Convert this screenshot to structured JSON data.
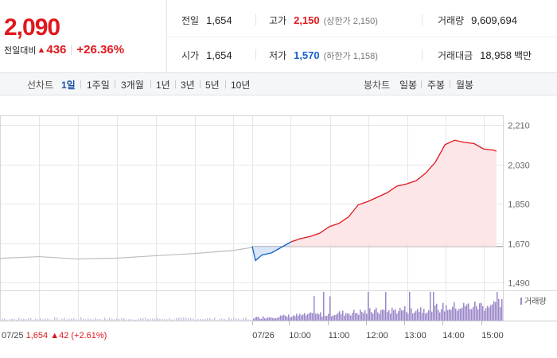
{
  "header": {
    "current_price": "2,090",
    "change_label": "전일대비",
    "change_arrow": "▲",
    "change_amount": "436",
    "change_rate": "+26.36%",
    "prev_close": {
      "label": "전일",
      "value": "1,654"
    },
    "high": {
      "label": "고가",
      "value": "2,150",
      "sub": "(상한가 2,150)"
    },
    "volume": {
      "label": "거래량",
      "value": "9,609,694"
    },
    "open": {
      "label": "시가",
      "value": "1,654"
    },
    "low": {
      "label": "저가",
      "value": "1,570",
      "sub": "(하한가 1,158)"
    },
    "trade_value": {
      "label": "거래대금",
      "value": "18,958",
      "unit": "백만"
    }
  },
  "toolbar": {
    "line_label": "선차트",
    "periods": [
      "1일",
      "1주일",
      "3개월",
      "1년",
      "3년",
      "5년",
      "10년"
    ],
    "active_period": "1일",
    "candle_label": "봉차트",
    "candles": [
      "일봉",
      "주봉",
      "월봉"
    ]
  },
  "colors": {
    "up": "#e0181e",
    "down": "#1560c9",
    "volume_bar": "#9b87c9",
    "prev_day_line": "#bdbdbd",
    "grid": "#e6e6e6"
  },
  "chart_data": {
    "type": "line",
    "y_ticks": [
      "2,210",
      "2,030",
      "1,850",
      "1,670",
      "1,490"
    ],
    "ylim": [
      1490,
      2210
    ],
    "prev_close": 1654,
    "x_ticks": [
      "07/26",
      "10:00",
      "11:00",
      "12:00",
      "13:00",
      "14:00",
      "15:00"
    ],
    "volume_legend": "거래량",
    "prev_day_label": "07/25",
    "prev_day_close": "1,654",
    "prev_day_change_arrow": "▲",
    "prev_day_change": "42",
    "prev_day_rate": "(+2.61%)",
    "prev_day_series": {
      "time": [
        "09:00",
        "10:00",
        "11:00",
        "12:00",
        "13:00",
        "14:00",
        "15:00",
        "15:30"
      ],
      "values": [
        1600,
        1608,
        1597,
        1601,
        1612,
        1622,
        1636,
        1650
      ]
    },
    "today_series": {
      "time": [
        "09:00",
        "09:05",
        "09:15",
        "09:30",
        "09:45",
        "10:00",
        "10:15",
        "10:30",
        "10:45",
        "11:00",
        "11:15",
        "11:30",
        "11:45",
        "12:00",
        "12:15",
        "12:30",
        "12:45",
        "13:00",
        "13:15",
        "13:30",
        "13:45",
        "14:00",
        "14:15",
        "14:30",
        "14:45",
        "15:00",
        "15:15",
        "15:20"
      ],
      "values": [
        1654,
        1590,
        1615,
        1625,
        1650,
        1675,
        1690,
        1700,
        1715,
        1745,
        1760,
        1790,
        1845,
        1860,
        1880,
        1900,
        1930,
        1940,
        1955,
        1990,
        2040,
        2120,
        2140,
        2130,
        2125,
        2100,
        2095,
        2090
      ]
    }
  }
}
